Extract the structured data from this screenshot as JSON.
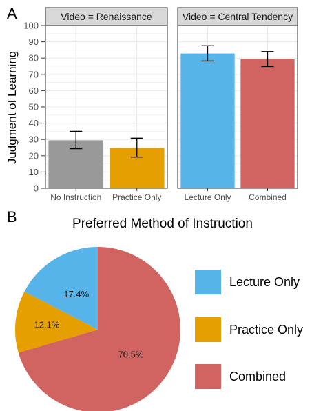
{
  "panel_labels": {
    "a": "A",
    "b": "B"
  },
  "chart_data": [
    {
      "type": "bar",
      "ylabel": "Judgment of Learning",
      "ylim": [
        0,
        100
      ],
      "yticks": [
        0,
        10,
        20,
        30,
        40,
        50,
        60,
        70,
        80,
        90,
        100
      ],
      "grid": true,
      "facets": [
        {
          "strip": "Video = Renaissance",
          "categories": [
            "No Instruction",
            "Practice Only"
          ],
          "values": [
            29.5,
            24.8
          ],
          "error_low": [
            24.3,
            19.2
          ],
          "error_high": [
            35.0,
            30.8
          ],
          "colors": [
            "#999999",
            "#E69F00"
          ]
        },
        {
          "strip": "Video = Central Tendency",
          "categories": [
            "Lecture Only",
            "Combined"
          ],
          "values": [
            82.8,
            79.3
          ],
          "error_low": [
            78.2,
            74.8
          ],
          "error_high": [
            87.6,
            84.0
          ],
          "colors": [
            "#56B4E9",
            "#D16360"
          ]
        }
      ]
    },
    {
      "type": "pie",
      "title": "Preferred Method of Instruction",
      "slices": [
        {
          "label": "Lecture Only",
          "value": 17.4,
          "pct_label": "17.4%",
          "color": "#56B4E9"
        },
        {
          "label": "Practice Only",
          "value": 12.1,
          "pct_label": "12.1%",
          "color": "#E69F00"
        },
        {
          "label": "Combined",
          "value": 70.5,
          "pct_label": "70.5%",
          "color": "#D16360"
        }
      ],
      "legend_position": "right"
    }
  ]
}
